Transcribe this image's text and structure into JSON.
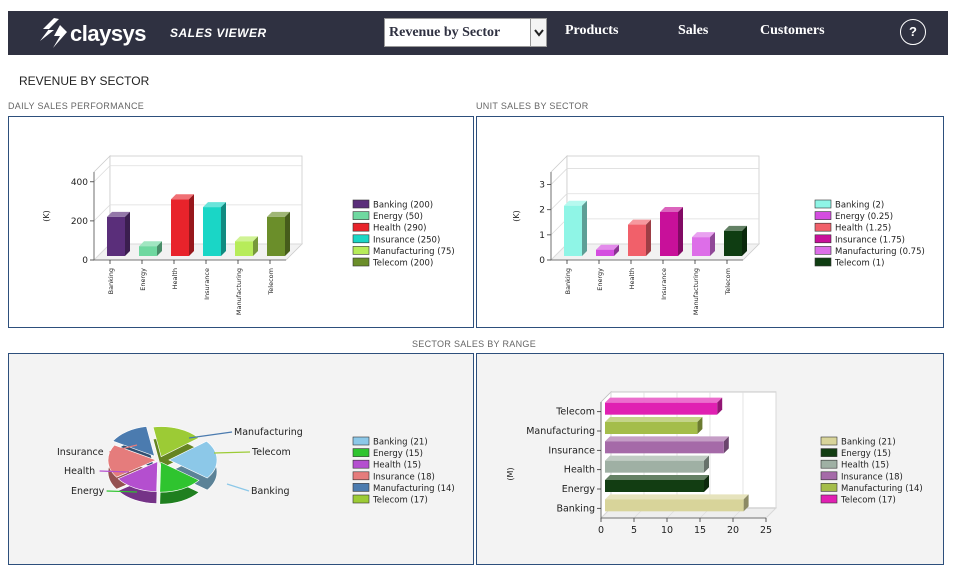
{
  "header": {
    "logo_text": "claysys",
    "app_title": "SALES VIEWER",
    "view_select": {
      "selected": "Revenue by Sector"
    },
    "nav": [
      "Products",
      "Sales",
      "Customers"
    ],
    "help_label": "?"
  },
  "page": {
    "title": "REVENUE BY SECTOR",
    "daily_label": "DAILY SALES PERFORMANCE",
    "unit_label": "UNIT SALES BY SECTOR",
    "range_label": "SECTOR SALES BY RANGE"
  },
  "chart_data": [
    {
      "type": "bar",
      "title": "DAILY SALES PERFORMANCE",
      "ylabel": "(K)",
      "ylim": [
        0,
        450
      ],
      "yticks": [
        "0",
        "200",
        "400"
      ],
      "categories": [
        "Banking",
        "Energy",
        "Health",
        "Insurance",
        "Manufacturing",
        "Telecom"
      ],
      "values": [
        200,
        50,
        290,
        250,
        75,
        200
      ],
      "legend": [
        "Banking (200)",
        "Energy (50)",
        "Health (290)",
        "Insurance (250)",
        "Manufacturing (75)",
        "Telecom (200)"
      ],
      "colors": [
        "#5a2e7a",
        "#6fd8a0",
        "#e8232b",
        "#1ad6c6",
        "#b7ec5a",
        "#6b8e2a"
      ],
      "legend_position": "right"
    },
    {
      "type": "bar",
      "title": "UNIT SALES BY SECTOR",
      "ylabel": "(K)",
      "ylim": [
        0,
        3.5
      ],
      "yticks": [
        "0",
        "1",
        "2",
        "3"
      ],
      "categories": [
        "Banking",
        "Energy",
        "Health",
        "Insurance",
        "Manufacturing",
        "Telecom"
      ],
      "values": [
        2,
        0.25,
        1.25,
        1.75,
        0.75,
        1
      ],
      "legend": [
        "Banking (2)",
        "Energy (0.25)",
        "Health (1.25)",
        "Insurance (1.75)",
        "Manufacturing (0.75)",
        "Telecom (1)"
      ],
      "colors": [
        "#8ff5e6",
        "#d44de0",
        "#f1606a",
        "#c8109a",
        "#dd6ee8",
        "#0f3d12"
      ],
      "legend_position": "right"
    },
    {
      "type": "pie",
      "categories": [
        "Banking",
        "Energy",
        "Health",
        "Insurance",
        "Manufacturing",
        "Telecom"
      ],
      "values": [
        21,
        15,
        15,
        18,
        14,
        17
      ],
      "legend": [
        "Banking (21)",
        "Energy (15)",
        "Health (15)",
        "Insurance (18)",
        "Manufacturing (14)",
        "Telecom (17)"
      ],
      "colors": [
        "#8cc8e8",
        "#2fc42f",
        "#b44fcf",
        "#e57c7c",
        "#4b7baf",
        "#9ccb35"
      ],
      "legend_position": "right"
    },
    {
      "type": "bar",
      "orientation": "horizontal",
      "ylabel": "(M)",
      "xlim": [
        0,
        25
      ],
      "xticks": [
        "0",
        "5",
        "10",
        "15",
        "20",
        "25"
      ],
      "categories": [
        "Banking",
        "Energy",
        "Health",
        "Insurance",
        "Manufacturing",
        "Telecom"
      ],
      "values": [
        21,
        15,
        15,
        18,
        14,
        17
      ],
      "legend": [
        "Banking (21)",
        "Energy (15)",
        "Health (15)",
        "Insurance (18)",
        "Manufacturing (14)",
        "Telecom (17)"
      ],
      "colors": [
        "#d8d49a",
        "#123d12",
        "#9fb0a4",
        "#a56aa8",
        "#a4bd4a",
        "#e020b2"
      ],
      "legend_position": "right"
    }
  ]
}
